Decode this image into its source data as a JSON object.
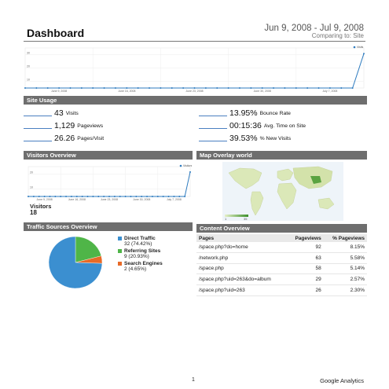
{
  "header": {
    "title": "Dashboard",
    "date_range": "Jun 9, 2008 - Jul 9, 2008",
    "comparing": "Comparing to: Site"
  },
  "main_chart": {
    "legend": "Visits",
    "y_labels": [
      "30",
      "20",
      "10"
    ],
    "x_labels": [
      "June 9, 2008",
      "June 16, 2008",
      "June 23, 2008",
      "June 30, 2008",
      "July 7, 2008"
    ],
    "point_count": 31,
    "last_value": 30
  },
  "site_usage": {
    "header": "Site Usage",
    "metrics": [
      {
        "value": "43",
        "label": "Visits"
      },
      {
        "value": "13.95%",
        "label": "Bounce Rate"
      },
      {
        "value": "1,129",
        "label": "Pageviews"
      },
      {
        "value": "00:15:36",
        "label": "Avg. Time on Site"
      },
      {
        "value": "26.26",
        "label": "Pages/Visit"
      },
      {
        "value": "39.53%",
        "label": "% New Visits"
      }
    ]
  },
  "visitors_overview": {
    "header": "Visitors Overview",
    "legend": "Visitors",
    "y_labels": [
      "20",
      "10"
    ],
    "x_labels": [
      "June 9, 2008",
      "June 16, 2008",
      "June 23, 2008",
      "June 30, 2008",
      "July 7, 2008"
    ],
    "label": "Visitors",
    "value": "18"
  },
  "map_overlay": {
    "header": "Map Overlay world",
    "scale_min": "1",
    "scale_max": "35"
  },
  "traffic_sources": {
    "header": "Traffic Sources Overview",
    "items": [
      {
        "name": "Direct Traffic",
        "detail": "32 (74.42%)",
        "color": "#3b8fd0",
        "pct": 74.42
      },
      {
        "name": "Referring Sites",
        "detail": "9 (20.93%)",
        "color": "#4fb548",
        "pct": 20.93
      },
      {
        "name": "Search Engines",
        "detail": "2 (4.65%)",
        "color": "#e86a27",
        "pct": 4.65
      }
    ]
  },
  "content_overview": {
    "header": "Content Overview",
    "columns": [
      "Pages",
      "Pageviews",
      "% Pageviews"
    ],
    "rows": [
      [
        "/space.php?do=home",
        "92",
        "8.15%"
      ],
      [
        "/network.php",
        "63",
        "5.58%"
      ],
      [
        "/space.php",
        "58",
        "5.14%"
      ],
      [
        "/space.php?uid=263&do=album",
        "29",
        "2.57%"
      ],
      [
        "/space.php?uid=263",
        "26",
        "2.30%"
      ]
    ]
  },
  "footer": {
    "page": "1",
    "brand": "Google Analytics"
  }
}
